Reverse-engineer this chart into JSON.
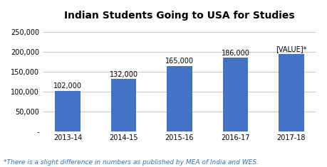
{
  "title": "Indian Students Going to USA for Studies",
  "categories": [
    "2013-14",
    "2014-15",
    "2015-16",
    "2016-17",
    "2017-18"
  ],
  "values": [
    102000,
    132000,
    165000,
    186000,
    196000
  ],
  "bar_labels": [
    "102,000",
    "132,000",
    "165,000",
    "186,000",
    "[VALUE]*"
  ],
  "bar_color": "#4472C4",
  "ylim": [
    0,
    270000
  ],
  "yticks": [
    0,
    50000,
    100000,
    150000,
    200000,
    250000
  ],
  "ytick_labels": [
    "-",
    "50,000",
    "100,000",
    "150,000",
    "200,000",
    "250,000"
  ],
  "footnote": "*There is a slight difference in numbers as published by MEA of India and WES.",
  "footnote_color": "#2E75B6",
  "background_color": "#ffffff",
  "title_fontsize": 10,
  "label_fontsize": 7,
  "tick_fontsize": 7,
  "footnote_fontsize": 6.5,
  "bar_width": 0.45
}
